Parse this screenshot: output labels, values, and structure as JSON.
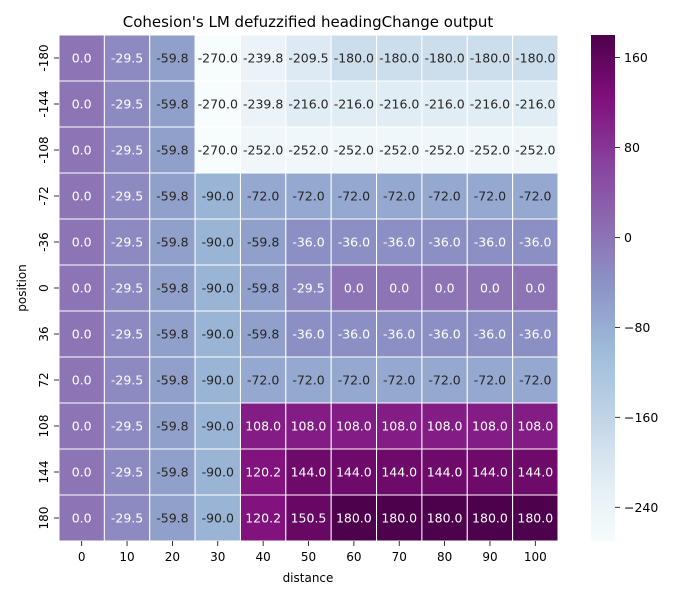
{
  "chart_data": {
    "type": "heatmap",
    "title": "Cohesion's LM defuzzified headingChange output",
    "xlabel": "distance",
    "ylabel": "position",
    "x_categories": [
      "0",
      "10",
      "20",
      "30",
      "40",
      "50",
      "60",
      "70",
      "80",
      "90",
      "100"
    ],
    "y_categories": [
      "-180",
      "-144",
      "-108",
      "-72",
      "-36",
      "0",
      "36",
      "72",
      "108",
      "144",
      "180"
    ],
    "values": [
      [
        0.0,
        -29.5,
        -59.8,
        -270.0,
        -239.8,
        -209.5,
        -180.0,
        -180.0,
        -180.0,
        -180.0,
        -180.0
      ],
      [
        0.0,
        -29.5,
        -59.8,
        -270.0,
        -239.8,
        -216.0,
        -216.0,
        -216.0,
        -216.0,
        -216.0,
        -216.0
      ],
      [
        0.0,
        -29.5,
        -59.8,
        -270.0,
        -252.0,
        -252.0,
        -252.0,
        -252.0,
        -252.0,
        -252.0,
        -252.0
      ],
      [
        0.0,
        -29.5,
        -59.8,
        -90.0,
        -72.0,
        -72.0,
        -72.0,
        -72.0,
        -72.0,
        -72.0,
        -72.0
      ],
      [
        0.0,
        -29.5,
        -59.8,
        -90.0,
        -59.8,
        -36.0,
        -36.0,
        -36.0,
        -36.0,
        -36.0,
        -36.0
      ],
      [
        0.0,
        -29.5,
        -59.8,
        -90.0,
        -59.8,
        -29.5,
        0.0,
        0.0,
        0.0,
        0.0,
        0.0
      ],
      [
        0.0,
        -29.5,
        -59.8,
        -90.0,
        -59.8,
        -36.0,
        -36.0,
        -36.0,
        -36.0,
        -36.0,
        -36.0
      ],
      [
        0.0,
        -29.5,
        -59.8,
        -90.0,
        -72.0,
        -72.0,
        -72.0,
        -72.0,
        -72.0,
        -72.0,
        -72.0
      ],
      [
        0.0,
        -29.5,
        -59.8,
        -90.0,
        108.0,
        108.0,
        108.0,
        108.0,
        108.0,
        108.0,
        108.0
      ],
      [
        0.0,
        -29.5,
        -59.8,
        -90.0,
        120.2,
        144.0,
        144.0,
        144.0,
        144.0,
        144.0,
        144.0
      ],
      [
        0.0,
        -29.5,
        -59.8,
        -90.0,
        120.2,
        150.5,
        180.0,
        180.0,
        180.0,
        180.0,
        180.0
      ]
    ],
    "value_format": "one-decimal",
    "colormap": "BuPu",
    "color_range": [
      -270,
      180
    ],
    "colorbar_ticks": [
      -240,
      -160,
      -80,
      0,
      80,
      160
    ],
    "colors": {
      "low": "#f7fcfd",
      "mid_low": "#bfd3e6",
      "mid": "#8c96c6",
      "mid_high": "#88419d",
      "high": "#4d004b",
      "cell_border": "#ffffff"
    },
    "grid": false,
    "annotations_on_cells": true
  }
}
